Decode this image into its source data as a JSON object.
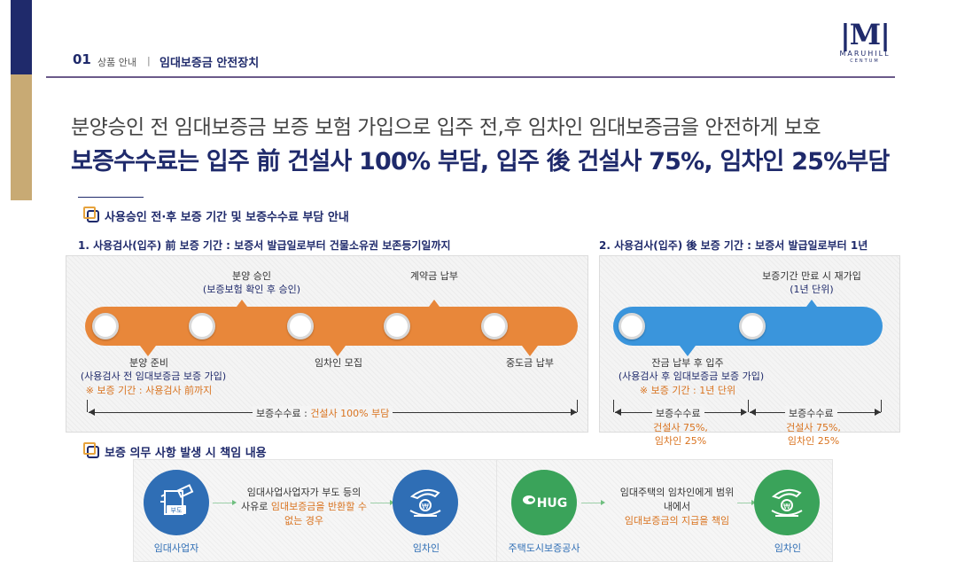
{
  "header": {
    "section_number": "01",
    "category": "상품 안내",
    "divider": "|",
    "title": "임대보증금 안전장치"
  },
  "logo": {
    "mark": "|M|",
    "name": "MARUHILL",
    "sub": "CENTUM"
  },
  "headline": {
    "subtitle": "분양승인 전 임대보증금 보증 보험 가입으로 입주 전,후 임차인 임대보증금을 안전하게 보호",
    "title": "보증수수료는 입주 前 건설사 100% 부담, 입주 後 건설사 75%, 임차인 25%부담"
  },
  "section1": {
    "title": "사용승인 전·후 보증 기간 및 보증수수료 부담 안내",
    "before": {
      "period_label": "1. 사용검사(입주) 前 보증 기간 :",
      "period_value": "보증서 발급일로부터 건물소유권 보존등기일까지",
      "top_labels": {
        "sale_approval_1": "분양 승인",
        "sale_approval_2": "(보증보험 확인 후 승인)",
        "contract": "계약금 납부"
      },
      "bottom_labels": {
        "prep_1": "분양 준비",
        "prep_2": "(사용검사 전 임대보증금 보증 가입)",
        "prep_note": "※ 보증 기간 : 사용검사 前까지",
        "tenant": "임차인 모집",
        "interim": "중도금 납부"
      },
      "fee_label": "보증수수료 :",
      "fee_value": "건설사 100% 부담"
    },
    "after": {
      "period_label": "2. 사용검사(입주) 後 보증 기간 :",
      "period_value": "보증서 발급일로부터 1년",
      "top_labels": {
        "renew_1": "보증기간 만료 시 재가입",
        "renew_2": "(1년 단위)"
      },
      "bottom_labels": {
        "moving_1": "잔금 납부 후 입주",
        "moving_2": "(사용검사 후 임대보증금 보증 가입)",
        "note": "※ 보증 기간 : 1년 단위"
      },
      "fee_left": {
        "label": "보증수수료",
        "line1": "건설사 75%,",
        "line2": "임차인 25%"
      },
      "fee_right": {
        "label": "보증수수료",
        "line1": "건설사 75%,",
        "line2": "임차인 25%"
      }
    }
  },
  "section2": {
    "title": "보증 의무 사항 발생 시 책임 내용",
    "landlord_caption": "임대사업자",
    "landlord_badge": "부도",
    "text1_line1": "임대사업사업자가 부도 등의",
    "text1_line2a": "사유로 ",
    "text1_line2b": "임대보증금을 반환할 수",
    "text1_line3": "없는 경우",
    "tenant_caption_1": "임차인",
    "hug_logo": "HUG",
    "hug_caption": "주택도시보증공사",
    "text2_line1": "임대주택의 임차인에게 범위",
    "text2_line2": "내에서",
    "text2_line3": "임대보증금의 지급을 책임",
    "tenant_caption_2": "임차인",
    "coin_symbol": "₩"
  },
  "colors": {
    "navy": "#1f2a6b",
    "gold": "#c8aa74",
    "orange": "#e8873a",
    "blue": "#3a95dc",
    "green": "#3aa35a"
  }
}
